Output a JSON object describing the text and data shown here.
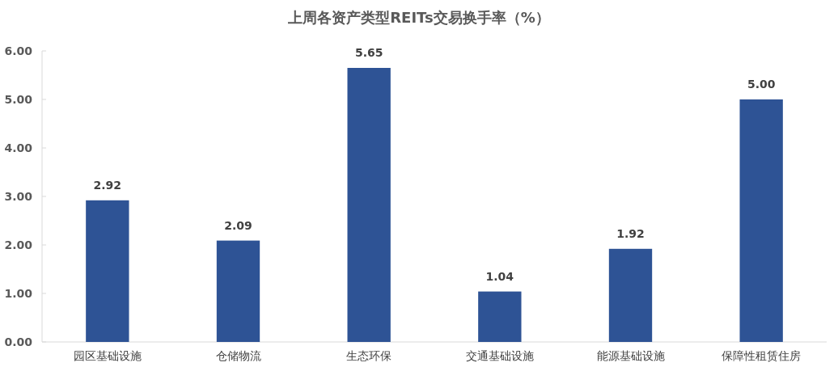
{
  "chart_data": {
    "type": "bar",
    "title": "上周各资产类型REITs交易换手率（%）",
    "categories": [
      "园区基础设施",
      "仓储物流",
      "生态环保",
      "交通基础设施",
      "能源基础设施",
      "保障性租赁住房"
    ],
    "values": [
      2.92,
      2.09,
      5.65,
      1.04,
      1.92,
      5.0
    ],
    "value_labels": [
      "2.92",
      "2.09",
      "5.65",
      "1.04",
      "1.92",
      "5.00"
    ],
    "color": "#2e5395",
    "ylim": [
      0,
      6
    ],
    "yticks": [
      {
        "value": 0,
        "label": "0.00"
      },
      {
        "value": 1,
        "label": "1.00"
      },
      {
        "value": 2,
        "label": "2.00"
      },
      {
        "value": 3,
        "label": "3.00"
      },
      {
        "value": 4,
        "label": "4.00"
      },
      {
        "value": 5,
        "label": "5.00"
      },
      {
        "value": 6,
        "label": "6.00"
      }
    ]
  }
}
